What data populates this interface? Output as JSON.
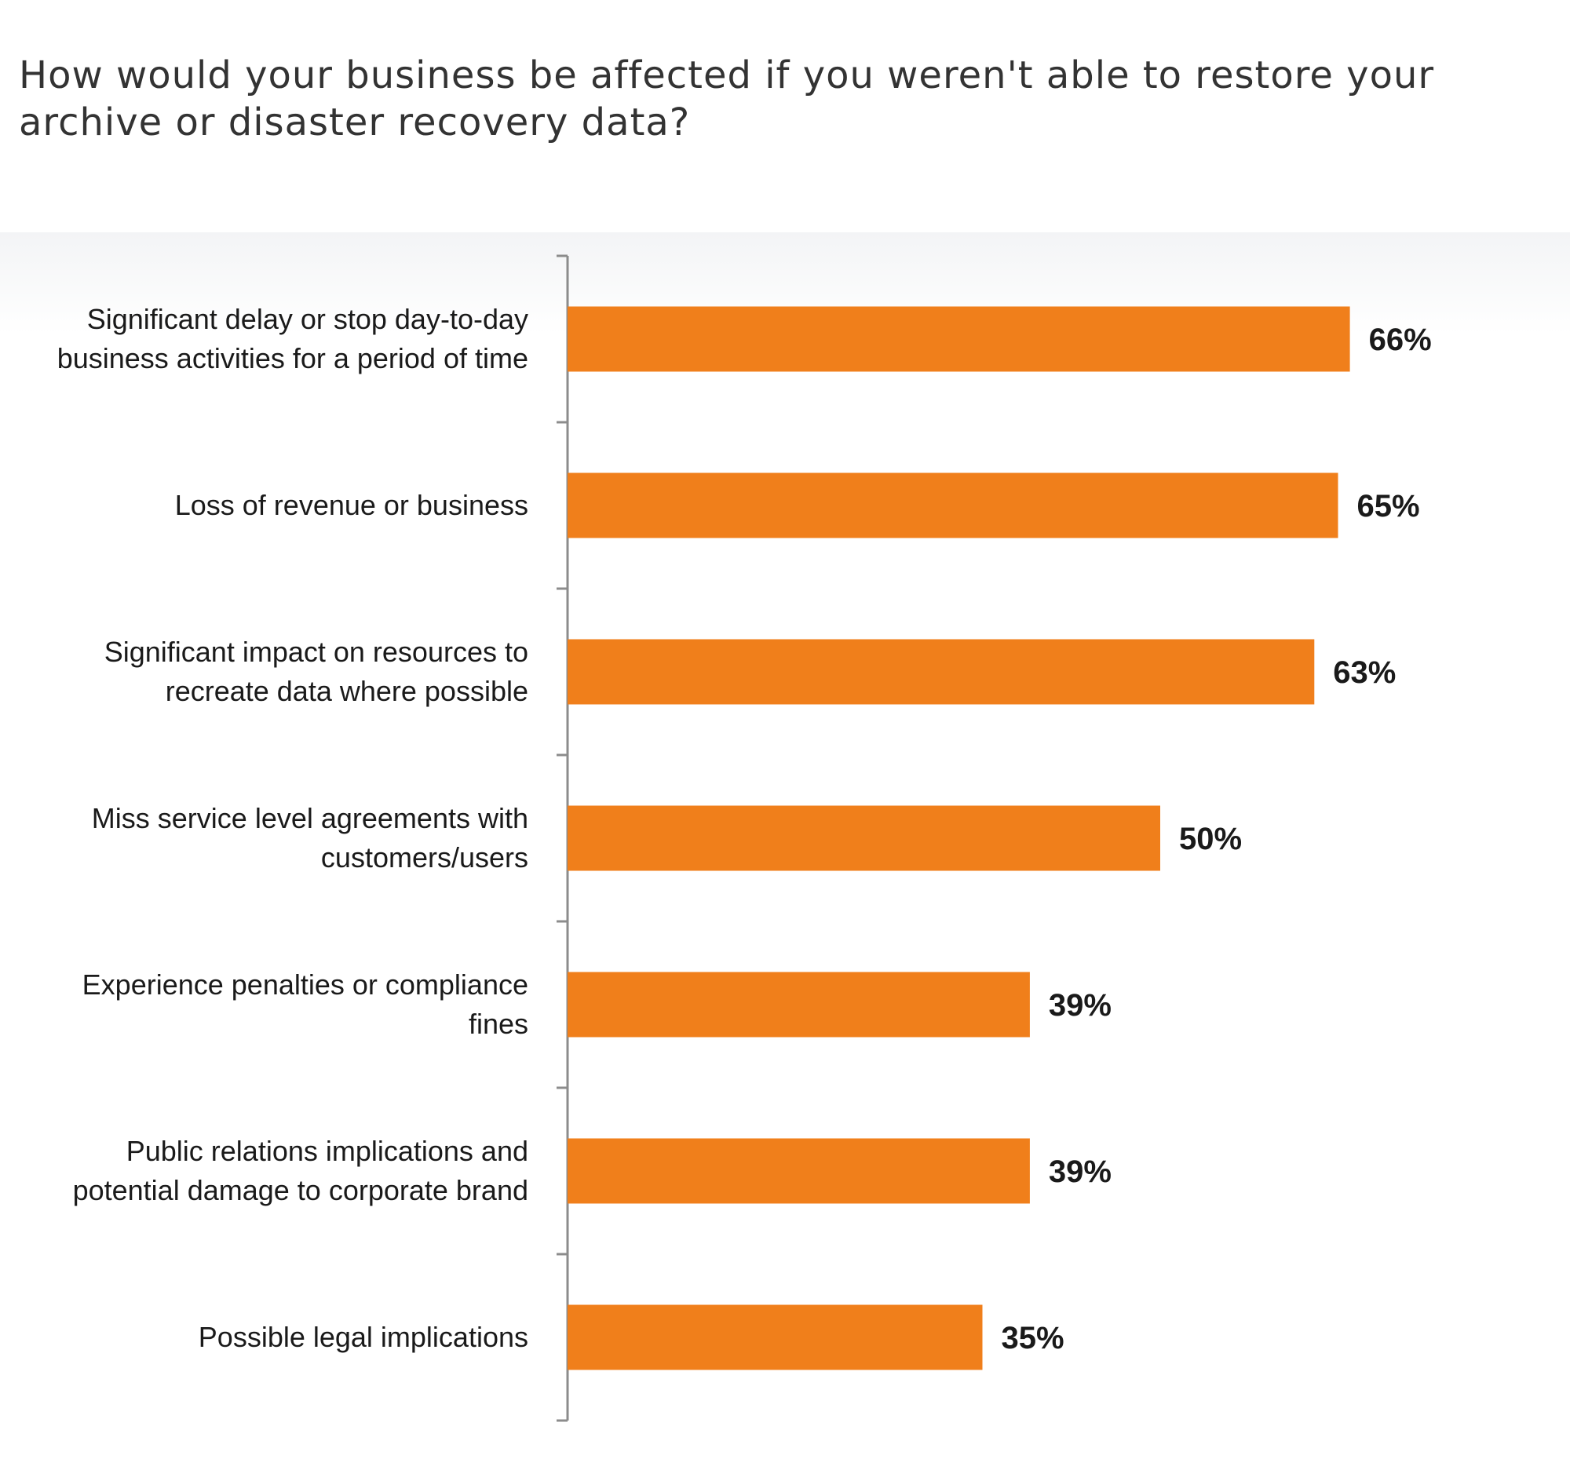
{
  "title": "How would your business be affected if you weren't able to restore your archive or disaster recovery data?",
  "colors": {
    "bar": "#f07f1b",
    "axis": "#8c8c8c",
    "text": "#1a1a1a"
  },
  "chart_data": {
    "type": "bar",
    "orientation": "horizontal",
    "title": "How would your business be affected if you weren't able to restore your archive or disaster recovery data?",
    "xlim": [
      0,
      100
    ],
    "grid": false,
    "legend": "none",
    "categories": [
      [
        "Significant delay or stop day-to-day",
        "business activities for a period of time"
      ],
      [
        "Loss of revenue or business"
      ],
      [
        "Significant impact on resources to",
        "recreate data where possible"
      ],
      [
        "Miss service level agreements with",
        "customers/users"
      ],
      [
        "Experience penalties or compliance",
        "fines"
      ],
      [
        "Public relations implications and",
        "potential damage to corporate brand"
      ],
      [
        "Possible legal implications"
      ]
    ],
    "values": [
      66,
      65,
      63,
      50,
      39,
      39,
      35
    ],
    "value_labels": [
      "66%",
      "65%",
      "63%",
      "50%",
      "39%",
      "39%",
      "35%"
    ]
  }
}
